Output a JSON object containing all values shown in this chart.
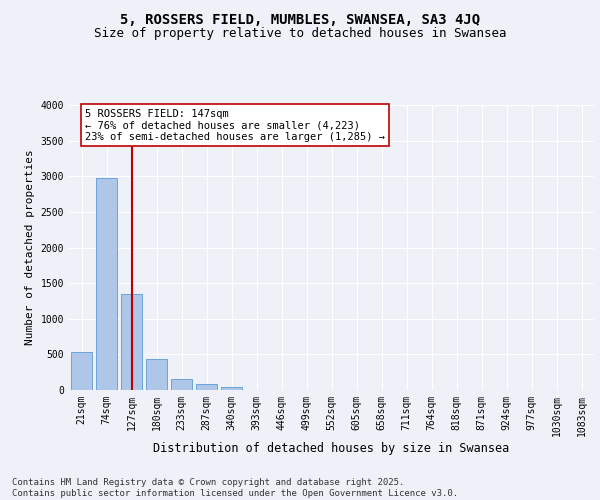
{
  "title": "5, ROSSERS FIELD, MUMBLES, SWANSEA, SA3 4JQ",
  "subtitle": "Size of property relative to detached houses in Swansea",
  "xlabel": "Distribution of detached houses by size in Swansea",
  "ylabel": "Number of detached properties",
  "categories": [
    "21sqm",
    "74sqm",
    "127sqm",
    "180sqm",
    "233sqm",
    "287sqm",
    "340sqm",
    "393sqm",
    "446sqm",
    "499sqm",
    "552sqm",
    "605sqm",
    "658sqm",
    "711sqm",
    "764sqm",
    "818sqm",
    "871sqm",
    "924sqm",
    "977sqm",
    "1030sqm",
    "1083sqm"
  ],
  "values": [
    530,
    2970,
    1350,
    430,
    160,
    80,
    45,
    0,
    0,
    0,
    0,
    0,
    0,
    0,
    0,
    0,
    0,
    0,
    0,
    0,
    0
  ],
  "bar_color": "#aec6e8",
  "bar_edge_color": "#5b9bd5",
  "vline_x": 2,
  "vline_color": "#c00000",
  "annotation_text": "5 ROSSERS FIELD: 147sqm\n← 76% of detached houses are smaller (4,223)\n23% of semi-detached houses are larger (1,285) →",
  "annotation_box_color": "#c00000",
  "annotation_text_color": "#000000",
  "ylim": [
    0,
    4000
  ],
  "yticks": [
    0,
    500,
    1000,
    1500,
    2000,
    2500,
    3000,
    3500,
    4000
  ],
  "background_color": "#eef2f8",
  "plot_background": "#eef2f8",
  "grid_color": "#ffffff",
  "footer": "Contains HM Land Registry data © Crown copyright and database right 2025.\nContains public sector information licensed under the Open Government Licence v3.0.",
  "title_fontsize": 10,
  "subtitle_fontsize": 9,
  "xlabel_fontsize": 8.5,
  "ylabel_fontsize": 8,
  "tick_fontsize": 7,
  "annotation_fontsize": 7.5,
  "footer_fontsize": 6.5
}
